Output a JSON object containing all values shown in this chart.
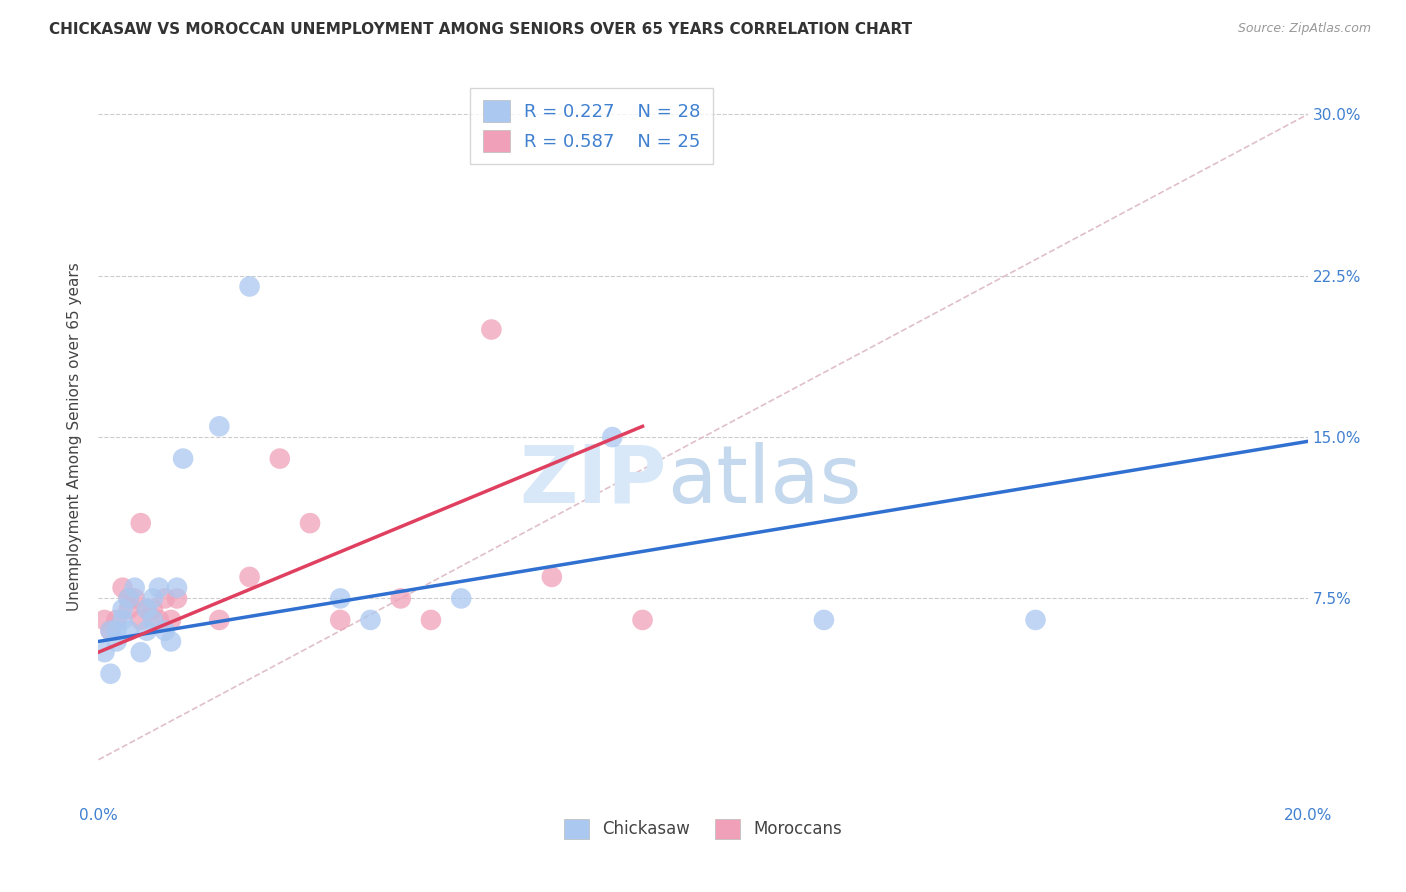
{
  "title": "CHICKASAW VS MOROCCAN UNEMPLOYMENT AMONG SENIORS OVER 65 YEARS CORRELATION CHART",
  "source": "Source: ZipAtlas.com",
  "ylabel": "Unemployment Among Seniors over 65 years",
  "xlim": [
    0.0,
    0.2
  ],
  "ylim": [
    -0.02,
    0.32
  ],
  "xticks": [
    0.0,
    0.05,
    0.1,
    0.15,
    0.2
  ],
  "xtick_labels": [
    "0.0%",
    "",
    "",
    "",
    "20.0%"
  ],
  "ytick_labels": [
    "7.5%",
    "15.0%",
    "22.5%",
    "30.0%"
  ],
  "yticks": [
    0.075,
    0.15,
    0.225,
    0.3
  ],
  "legend_r1": "R = 0.227",
  "legend_n1": "N = 28",
  "legend_r2": "R = 0.587",
  "legend_n2": "N = 25",
  "chickasaw_color": "#aac8f0",
  "moroccan_color": "#f0a0b8",
  "trendline_chickasaw_color": "#3070d0",
  "trendline_moroccan_color": "#e04060",
  "diagonal_color": "#e0c0c8",
  "watermark_zip": "ZIP",
  "watermark_atlas": "atlas",
  "background_color": "#ffffff",
  "chickasaw_x": [
    0.001,
    0.002,
    0.002,
    0.003,
    0.003,
    0.004,
    0.004,
    0.005,
    0.005,
    0.006,
    0.007,
    0.008,
    0.008,
    0.009,
    0.009,
    0.01,
    0.011,
    0.012,
    0.013,
    0.014,
    0.02,
    0.025,
    0.04,
    0.045,
    0.06,
    0.085,
    0.12,
    0.155
  ],
  "chickasaw_y": [
    0.05,
    0.04,
    0.06,
    0.055,
    0.06,
    0.065,
    0.07,
    0.06,
    0.075,
    0.08,
    0.05,
    0.06,
    0.07,
    0.065,
    0.075,
    0.08,
    0.06,
    0.055,
    0.08,
    0.14,
    0.155,
    0.22,
    0.075,
    0.065,
    0.075,
    0.15,
    0.065,
    0.065
  ],
  "moroccan_x": [
    0.001,
    0.002,
    0.003,
    0.004,
    0.005,
    0.005,
    0.006,
    0.007,
    0.007,
    0.008,
    0.009,
    0.01,
    0.011,
    0.012,
    0.013,
    0.02,
    0.025,
    0.03,
    0.035,
    0.04,
    0.05,
    0.055,
    0.065,
    0.075,
    0.09
  ],
  "moroccan_y": [
    0.065,
    0.06,
    0.065,
    0.08,
    0.07,
    0.075,
    0.075,
    0.065,
    0.11,
    0.07,
    0.07,
    0.065,
    0.075,
    0.065,
    0.075,
    0.065,
    0.085,
    0.14,
    0.11,
    0.065,
    0.075,
    0.065,
    0.2,
    0.085,
    0.065
  ],
  "trendline_chick_x0": 0.0,
  "trendline_chick_x1": 0.2,
  "trendline_chick_y0": 0.055,
  "trendline_chick_y1": 0.148,
  "trendline_moroc_x0": 0.0,
  "trendline_moroc_x1": 0.09,
  "trendline_moroc_y0": 0.05,
  "trendline_moroc_y1": 0.155
}
